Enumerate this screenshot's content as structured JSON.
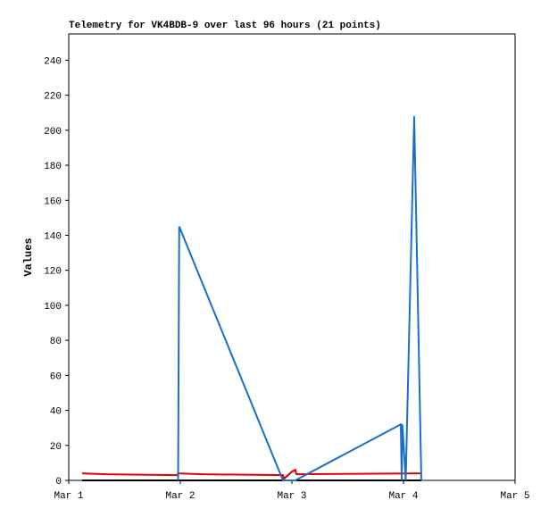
{
  "chart_data": {
    "type": "line",
    "title": "Telemetry for VK4BDB-9 over last 96 hours (21 points)",
    "y_label": "Values",
    "xlim": [
      1,
      5
    ],
    "xticks": [
      {
        "value": 1,
        "label": "Mar 1"
      },
      {
        "value": 2,
        "label": "Mar 2"
      },
      {
        "value": 3,
        "label": "Mar 3"
      },
      {
        "value": 4,
        "label": "Mar 4"
      },
      {
        "value": 5,
        "label": "Mar 5"
      }
    ],
    "ylim": [
      0,
      255
    ],
    "yticks": [
      0,
      20,
      40,
      60,
      80,
      100,
      120,
      140,
      160,
      180,
      200,
      220,
      240
    ],
    "series": [
      {
        "color": "#000000",
        "x": [
          1.12,
          4.16
        ],
        "values": [
          0,
          0
        ]
      },
      {
        "color": "#e00000",
        "x": [
          1.12,
          1.33,
          1.97,
          1.98,
          2.2,
          2.92,
          2.93,
          3.0,
          3.03,
          3.04,
          4.16
        ],
        "values": [
          4,
          3.5,
          3,
          4,
          3.5,
          3,
          1,
          5,
          6,
          3.5,
          4
        ]
      },
      {
        "color": "#1a6fc8",
        "x": [
          1.98,
          1.99,
          2.92,
          3.03,
          3.976,
          3.984,
          3.99,
          4.02,
          4.096,
          4.16
        ],
        "values": [
          0,
          145,
          0,
          0,
          32,
          0,
          32,
          0,
          208,
          0
        ]
      }
    ]
  }
}
